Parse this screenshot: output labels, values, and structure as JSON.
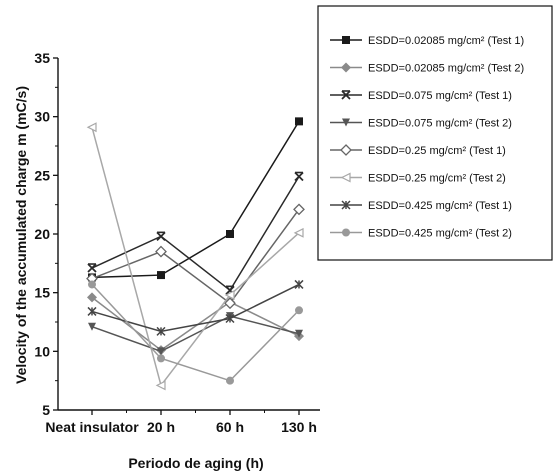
{
  "chart_data": {
    "type": "line",
    "xlabel": "Periodo de aging (h)",
    "ylabel": "Velocity of the accumulated charge m (mC/s)",
    "categories": [
      "Neat insulator",
      "20 h",
      "60 h",
      "130 h"
    ],
    "ylim": [
      5,
      35
    ],
    "yticks": [
      5,
      10,
      15,
      20,
      25,
      30,
      35
    ],
    "grid": false,
    "legend_position": "top-right",
    "series": [
      {
        "name": "ESDD=0.02085 mg/cm² (Test 1)",
        "marker": "square-filled",
        "color": "#1a1a1a",
        "values": [
          16.3,
          16.5,
          20.0,
          29.6
        ]
      },
      {
        "name": "ESDD=0.02085 mg/cm² (Test 2)",
        "marker": "diamond-filled",
        "color": "#8a8a8a",
        "values": [
          14.6,
          10.1,
          14.2,
          11.3
        ]
      },
      {
        "name": "ESDD=0.075 mg/cm² (Test 1)",
        "marker": "x-triangle",
        "color": "#2a2a2a",
        "values": [
          17.1,
          19.8,
          15.2,
          24.9
        ]
      },
      {
        "name": "ESDD=0.075 mg/cm² (Test 2)",
        "marker": "tri-down-filled",
        "color": "#555555",
        "values": [
          12.1,
          10.0,
          13.0,
          11.5
        ]
      },
      {
        "name": "ESDD=0.25 mg/cm² (Test 1)",
        "marker": "diamond-open",
        "color": "#666666",
        "values": [
          16.2,
          18.5,
          14.1,
          22.1
        ]
      },
      {
        "name": "ESDD=0.25 mg/cm² (Test 2)",
        "marker": "tri-left-open",
        "color": "#a8a8a8",
        "values": [
          29.1,
          7.1,
          14.8,
          20.1
        ]
      },
      {
        "name": "ESDD=0.425 mg/cm² (Test 1)",
        "marker": "cross",
        "color": "#444444",
        "values": [
          13.4,
          11.7,
          12.8,
          15.7
        ]
      },
      {
        "name": "ESDD=0.425 mg/cm² (Test 2)",
        "marker": "circle-filled",
        "color": "#999999",
        "values": [
          15.7,
          9.4,
          7.5,
          13.5
        ]
      }
    ]
  }
}
